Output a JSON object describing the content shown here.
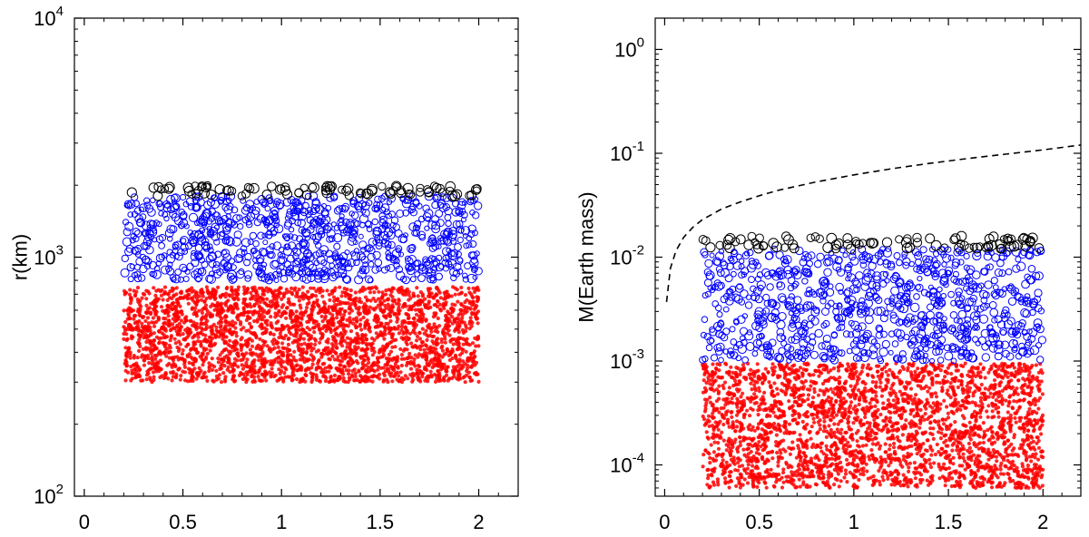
{
  "chart_data": [
    {
      "type": "scatter",
      "yscale": "log",
      "xlabel": "",
      "ylabel": "r(km)",
      "xlim": [
        -0.05,
        2.2
      ],
      "ylim": [
        100,
        10000
      ],
      "xticks": [
        0,
        0.5,
        1,
        1.5,
        2
      ],
      "xtick_labels": [
        "0",
        "0.5",
        "1",
        "1.5",
        "2"
      ],
      "yticks": [
        {
          "value": 100,
          "base": "10",
          "exp": "2"
        },
        {
          "value": 1000,
          "base": "10",
          "exp": "3"
        },
        {
          "value": 10000,
          "base": "10",
          "exp": "4"
        }
      ],
      "series": [
        {
          "color": "#ff0000",
          "marker": "filled-dot",
          "x_range": [
            0.2,
            2.0
          ],
          "y_range": [
            300,
            750
          ],
          "count": 3000
        },
        {
          "color": "#0000ff",
          "marker": "open-circle",
          "x_range": [
            0.2,
            2.0
          ],
          "y_range": [
            800,
            1800
          ],
          "count": 900
        },
        {
          "color": "#000000",
          "marker": "open-circle-large",
          "x_range": [
            0.2,
            2.0
          ],
          "y_range": [
            1800,
            2000
          ],
          "count": 90
        }
      ],
      "grid": false
    },
    {
      "type": "scatter",
      "yscale": "log",
      "xlabel": "",
      "ylabel": "M(Earth mass)",
      "xlim": [
        -0.05,
        2.2
      ],
      "ylim": [
        5e-05,
        2
      ],
      "xticks": [
        0,
        0.5,
        1,
        1.5,
        2
      ],
      "xtick_labels": [
        "0",
        "0.5",
        "1",
        "1.5",
        "2"
      ],
      "yticks": [
        {
          "value": 0.0001,
          "base": "10",
          "exp": "-4"
        },
        {
          "value": 0.001,
          "base": "10",
          "exp": "-3"
        },
        {
          "value": 0.01,
          "base": "10",
          "exp": "-2"
        },
        {
          "value": 0.1,
          "base": "10",
          "exp": "-1"
        },
        {
          "value": 1,
          "base": "10",
          "exp": "0"
        }
      ],
      "series": [
        {
          "color": "#ff0000",
          "marker": "filled-dot",
          "x_range": [
            0.2,
            2.0
          ],
          "y_range": [
            6e-05,
            0.00095
          ],
          "count": 3000
        },
        {
          "color": "#0000ff",
          "marker": "open-circle",
          "x_range": [
            0.2,
            2.0
          ],
          "y_range": [
            0.001,
            0.012
          ],
          "count": 900
        },
        {
          "color": "#000000",
          "marker": "open-circle-large",
          "x_range": [
            0.2,
            2.0
          ],
          "y_range": [
            0.012,
            0.016
          ],
          "count": 90
        }
      ],
      "curve": {
        "style": "dashed",
        "color": "#000000",
        "x": [
          0.01,
          0.03,
          0.06,
          0.1,
          0.15,
          0.2,
          0.3,
          0.4,
          0.5,
          0.6,
          0.8,
          1.0,
          1.2,
          1.4,
          1.6,
          1.8,
          2.0,
          2.2
        ],
        "y": [
          0.0037,
          0.0078,
          0.0115,
          0.0155,
          0.0195,
          0.023,
          0.029,
          0.034,
          0.039,
          0.044,
          0.053,
          0.062,
          0.071,
          0.08,
          0.089,
          0.098,
          0.108,
          0.12
        ]
      },
      "grid": false
    }
  ]
}
